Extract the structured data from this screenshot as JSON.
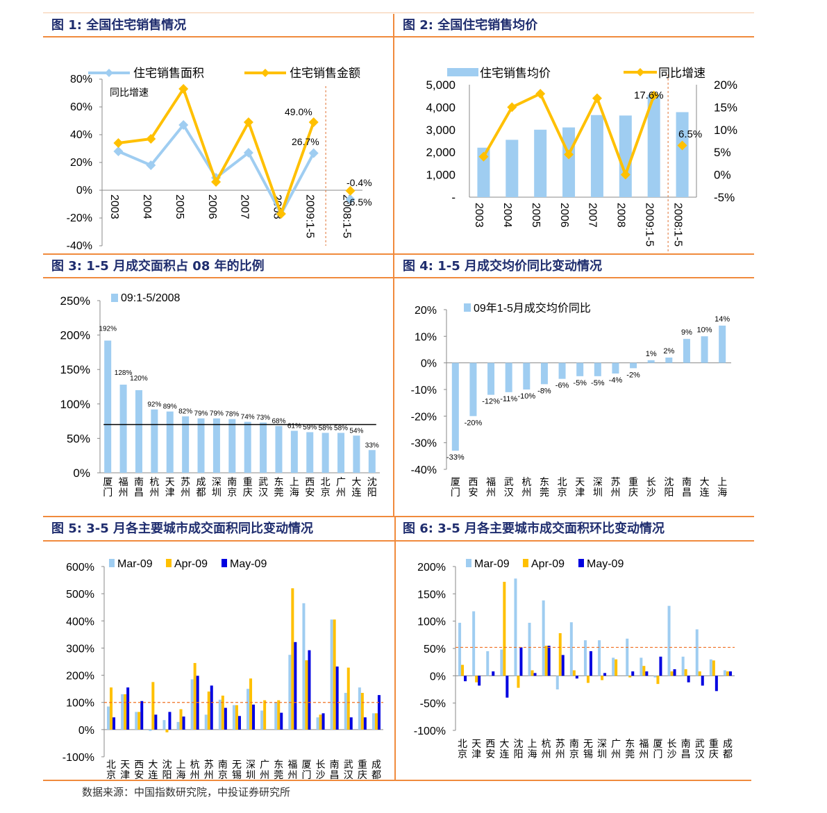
{
  "colors": {
    "accent": "#f08a3c",
    "title": "#1f2d6e",
    "lightblue": "#9fcdf1",
    "yellow": "#ffc000",
    "blue": "#0000e0",
    "marker": "#f5c400"
  },
  "source_text": "数据来源：中国指数研究院，中投证券研究所",
  "chart_data": [
    {
      "id": "c1",
      "type": "line",
      "title": "图 1:  全国住宅销售情况",
      "subtitle": "同比增速",
      "categories": [
        "2003",
        "2004",
        "2005",
        "2006",
        "2007",
        "2008",
        "2009:1-5",
        "2008:1-5"
      ],
      "series": [
        {
          "name": "住宅销售面积",
          "values": [
            28,
            18,
            47,
            9,
            27,
            -17,
            26.7,
            -6.5
          ]
        },
        {
          "name": "住宅销售金额",
          "values": [
            34,
            37,
            73,
            6,
            49,
            -17,
            49.0,
            -0.4
          ]
        }
      ],
      "labels": [
        "49.0%",
        "26.7%",
        "-0.4%",
        "-6.5%"
      ],
      "yticks": [
        "80%",
        "60%",
        "40%",
        "20%",
        "0%",
        "-20%",
        "-40%"
      ],
      "ylim": [
        -40,
        80
      ]
    },
    {
      "id": "c2",
      "type": "bar+line",
      "title": "图 2:  全国住宅销售均价",
      "categories": [
        "2003",
        "2004",
        "2005",
        "2006",
        "2007",
        "2008",
        "2009:1-5",
        "2008:1-5"
      ],
      "bar_series": {
        "name": "住宅销售均价",
        "values": [
          2200,
          2550,
          3000,
          3100,
          3650,
          3630,
          4550,
          3780
        ]
      },
      "line_series": {
        "name": "同比增速",
        "values": [
          4,
          15,
          18,
          4.5,
          17,
          0,
          17.6,
          6.5
        ]
      },
      "labels": [
        "17.6%",
        "6.5%"
      ],
      "yticks_left": [
        "5,000",
        "4,000",
        "3,000",
        "2,000",
        "1,000",
        "-"
      ],
      "yticks_right": [
        "20%",
        "15%",
        "10%",
        "5%",
        "0%",
        "-5%"
      ],
      "ylim_left": [
        0,
        5000
      ],
      "ylim_right": [
        -5,
        20
      ]
    },
    {
      "id": "c3",
      "type": "bar",
      "title": "图 3:  1-5 月成交面积占 08 年的比例",
      "legend": "09:1-5/2008",
      "categories": [
        "厦门",
        "福州",
        "南昌",
        "杭州",
        "天津",
        "苏州",
        "成都",
        "深圳",
        "南京",
        "重庆",
        "武汉",
        "东莞",
        "上海",
        "西安",
        "北京",
        "广州",
        "大连",
        "沈阳"
      ],
      "values": [
        192,
        128,
        120,
        92,
        89,
        82,
        79,
        79,
        78,
        74,
        73,
        68,
        61,
        59,
        58,
        58,
        54,
        33
      ],
      "labels": [
        "192%",
        "128%",
        "120%",
        "92%",
        "89%",
        "82%",
        "79%",
        "79%",
        "78%",
        "74%",
        "73%",
        "68%",
        "61%",
        "59%",
        "58%",
        "58%",
        "54%",
        "33%"
      ],
      "yticks": [
        "250%",
        "200%",
        "150%",
        "100%",
        "50%",
        "0%"
      ],
      "ylim": [
        0,
        250
      ],
      "reference_value": 70
    },
    {
      "id": "c4",
      "type": "bar",
      "title": "图 4:  1-5 月成交均价同比变动情况",
      "legend": "09年1-5月成交均价同比",
      "categories": [
        "厦门",
        "西安",
        "福州",
        "武汉",
        "杭州",
        "东莞",
        "北京",
        "天津",
        "深圳",
        "苏州",
        "重庆",
        "长沙",
        "沈阳",
        "南昌",
        "大连",
        "上海"
      ],
      "values": [
        -33,
        -20,
        -12,
        -11,
        -10,
        -8,
        -6,
        -5,
        -5,
        -4,
        -2,
        1,
        2,
        9,
        10,
        14
      ],
      "labels": [
        "-33%",
        "-20%",
        "-12%",
        "-11%",
        "-10%",
        "-8%",
        "-6%",
        "-5%",
        "-5%",
        "-4%",
        "-2%",
        "1%",
        "2%",
        "9%",
        "10%",
        "14%"
      ],
      "yticks": [
        "20%",
        "10%",
        "0%",
        "-10%",
        "-20%",
        "-30%",
        "-40%"
      ],
      "ylim": [
        -40,
        20
      ]
    },
    {
      "id": "c5",
      "type": "bar",
      "title": "图 5:  3-5 月各主要城市成交面积同比变动情况",
      "categories": [
        "北京",
        "天津",
        "西安",
        "大连",
        "沈阳",
        "上海",
        "杭州",
        "苏州",
        "南京",
        "无锡",
        "深圳",
        "广州",
        "东莞",
        "福州",
        "厦门",
        "长沙",
        "南昌",
        "武汉",
        "重庆",
        "成都"
      ],
      "series": [
        {
          "name": "Mar-09",
          "values": [
            85,
            130,
            65,
            -5,
            35,
            28,
            185,
            55,
            110,
            90,
            150,
            70,
            100,
            275,
            465,
            45,
            405,
            135,
            155,
            60
          ]
        },
        {
          "name": "Apr-09",
          "values": [
            155,
            130,
            65,
            175,
            -10,
            75,
            245,
            140,
            125,
            90,
            188,
            108,
            108,
            520,
            255,
            55,
            405,
            228,
            135,
            60
          ]
        },
        {
          "name": "May-09",
          "values": [
            45,
            155,
            105,
            55,
            65,
            48,
            198,
            162,
            80,
            50,
            92,
            0,
            62,
            322,
            292,
            60,
            232,
            45,
            45,
            127
          ]
        }
      ],
      "yticks": [
        "600%",
        "500%",
        "400%",
        "300%",
        "200%",
        "100%",
        "0%",
        "-100%"
      ],
      "ylim": [
        -100,
        600
      ],
      "reference_value": 100
    },
    {
      "id": "c6",
      "type": "bar",
      "title": "图 6:  3-5 月各主要城市成交面积环比变动情况",
      "categories": [
        "北京",
        "天津",
        "西安",
        "大连",
        "沈阳",
        "上海",
        "杭州",
        "苏州",
        "南京",
        "无锡",
        "深圳",
        "广州",
        "东莞",
        "福州",
        "厦门",
        "长沙",
        "南昌",
        "武汉",
        "重庆",
        "成都"
      ],
      "series": [
        {
          "name": "Mar-09",
          "values": [
            97,
            118,
            45,
            48,
            178,
            97,
            138,
            -25,
            98,
            65,
            65,
            33,
            68,
            33,
            -3,
            128,
            35,
            85,
            30,
            10
          ]
        },
        {
          "name": "Apr-09",
          "values": [
            20,
            -12,
            0,
            172,
            -22,
            10,
            55,
            78,
            10,
            -13,
            -8,
            30,
            -3,
            18,
            -15,
            8,
            12,
            8,
            28,
            8
          ]
        },
        {
          "name": "May-09",
          "values": [
            -10,
            -18,
            8,
            -40,
            52,
            5,
            55,
            38,
            -5,
            45,
            5,
            0,
            8,
            8,
            35,
            12,
            -12,
            -18,
            -28,
            8
          ]
        }
      ],
      "yticks": [
        "200%",
        "150%",
        "100%",
        "50%",
        "0%",
        "-50%",
        "-100%"
      ],
      "ylim": [
        -100,
        200
      ],
      "reference_value": 52
    }
  ]
}
